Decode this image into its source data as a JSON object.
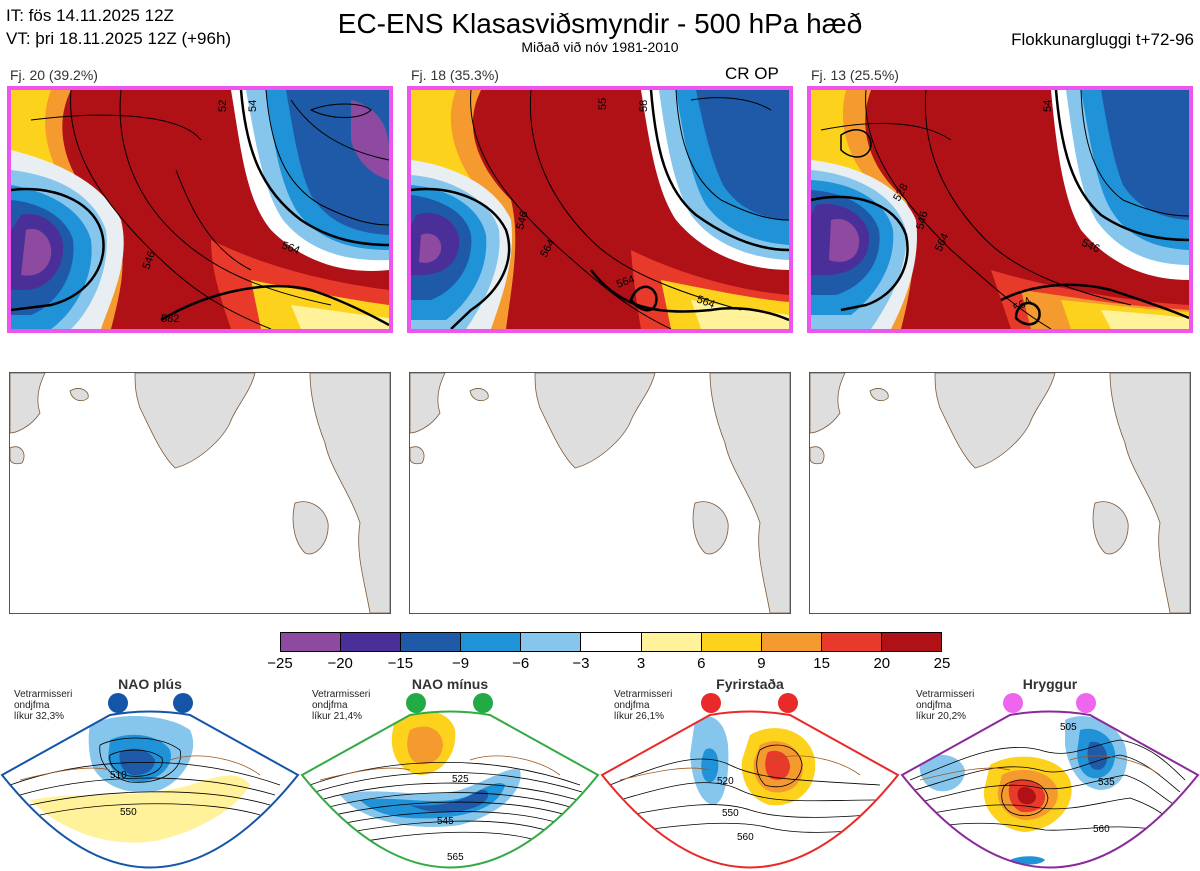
{
  "header": {
    "issue_time": "IT: fös 14.11.2025 12Z",
    "valid_time": "VT: þri 18.11.2025 12Z  (+96h)",
    "title": "EC-ENS Klasasviðsmyndir - 500 hPa hæð",
    "subtitle": "Miðað við nóv 1981-2010",
    "window": "Flokkunargluggi t+72-96"
  },
  "clusters": [
    {
      "label": "Fj. 20 (39.2%)",
      "contours": [
        "546",
        "564",
        "582",
        "52",
        "54"
      ]
    },
    {
      "label": "Fj. 18 (35.3%)",
      "extra_label": "CR OP",
      "contours": [
        "546",
        "564",
        "564",
        "564",
        "55",
        "58"
      ]
    },
    {
      "label": "Fj. 13 (25.5%)",
      "contours": [
        "546",
        "564",
        "564",
        "528",
        "546",
        "54"
      ]
    }
  ],
  "colorbar": {
    "ticks": [
      "−25",
      "−20",
      "−15",
      "−9",
      "−6",
      "−3",
      "3",
      "6",
      "9",
      "15",
      "20",
      "25"
    ],
    "colors": [
      "#8e4aa0",
      "#4a2f99",
      "#1f5aa8",
      "#1f92d8",
      "#86c6ec",
      "#ffffff",
      "#fff29a",
      "#fdd21c",
      "#f59a2e",
      "#e83a2a",
      "#b01116"
    ]
  },
  "regimes": [
    {
      "name": "NAO plús",
      "note_l1": "Vetrarmisseri",
      "note_l2": "ondjfma",
      "note_l3": "líkur 32,3%",
      "dot_color": "#1555a8",
      "frame_color": "#1555a8",
      "contours": [
        "510",
        "550"
      ]
    },
    {
      "name": "NAO mínus",
      "note_l1": "Vetrarmisseri",
      "note_l2": "ondjfma",
      "note_l3": "líkur 21,4%",
      "dot_color": "#22aa44",
      "frame_color": "#33aa44",
      "contours": [
        "525",
        "545",
        "565"
      ]
    },
    {
      "name": "Fyrirstaða",
      "note_l1": "Vetrarmisseri",
      "note_l2": "ondjfma",
      "note_l3": "líkur 26,1%",
      "dot_color": "#e82a2a",
      "frame_color": "#e82a2a",
      "contours": [
        "520",
        "550",
        "560"
      ]
    },
    {
      "name": "Hryggur",
      "note_l1": "Vetrarmisseri",
      "note_l2": "ondjfma",
      "note_l3": "líkur 20,2%",
      "dot_color": "#ee66ee",
      "frame_color": "#8a2a9a",
      "contours": [
        "505",
        "535",
        "560"
      ]
    }
  ]
}
